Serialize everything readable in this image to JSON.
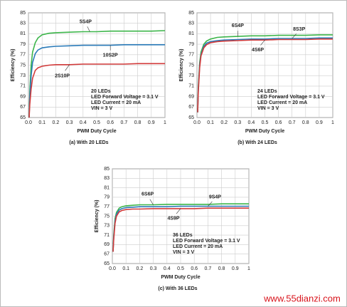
{
  "chart_data": [
    {
      "type": "line",
      "title": "(a) With 20 LEDs",
      "xlabel": "PWM Duty Cycle",
      "ylabel": "Efficiency (%)",
      "annotations": [
        "20 LEDs",
        "LED Forward Voltage = 3.1 V",
        "LED Current = 20 mA",
        "VIN = 3 V"
      ],
      "x": [
        0.005,
        0.01,
        0.02,
        0.03,
        0.05,
        0.07,
        0.1,
        0.15,
        0.2,
        0.3,
        0.4,
        0.5,
        0.6,
        0.7,
        0.8,
        0.9,
        1.0
      ],
      "series": [
        {
          "name": "5S4P",
          "color": "#3cb54a",
          "values": [
            65,
            70,
            75,
            77.5,
            79.3,
            80.2,
            80.8,
            81.1,
            81.2,
            81.3,
            81.4,
            81.4,
            81.5,
            81.5,
            81.5,
            81.5,
            81.6
          ]
        },
        {
          "name": "10S2P",
          "color": "#2b7bb9",
          "values": [
            65,
            69,
            73,
            75.5,
            77.2,
            77.9,
            78.3,
            78.5,
            78.6,
            78.7,
            78.8,
            78.8,
            78.8,
            78.9,
            78.9,
            78.9,
            78.9
          ]
        },
        {
          "name": "2S10P",
          "color": "#d23a3a",
          "values": [
            65,
            67.5,
            70.5,
            72.5,
            74,
            74.5,
            74.8,
            75,
            75.1,
            75.1,
            75.2,
            75.2,
            75.2,
            75.2,
            75.3,
            75.3,
            75.3
          ]
        }
      ],
      "xlim": [
        0,
        1
      ],
      "xticks": [
        {
          "value": 0,
          "label": "0.0"
        },
        0.1,
        0.2,
        0.3,
        0.4,
        0.5,
        0.6,
        0.7,
        0.8,
        0.9,
        1
      ],
      "ylim": [
        65,
        85
      ],
      "yticks": [
        65,
        67,
        69,
        71,
        73,
        75,
        77,
        79,
        81,
        83,
        85
      ],
      "grid": true
    },
    {
      "type": "line",
      "title": "(b) With 24 LEDs",
      "xlabel": "PWM Duty Cycle",
      "ylabel": "Efficiency (%)",
      "annotations": [
        "24 LEDs",
        "LED Forward Voltage = 3.1 V",
        "LED Current = 20 mA",
        "VIN = 3 V"
      ],
      "x": [
        0.005,
        0.01,
        0.02,
        0.03,
        0.05,
        0.07,
        0.1,
        0.15,
        0.2,
        0.3,
        0.4,
        0.5,
        0.6,
        0.7,
        0.8,
        0.9,
        1.0
      ],
      "series": [
        {
          "name": "6S4P",
          "color": "#3cb54a",
          "values": [
            66,
            71,
            75.5,
            77.5,
            79,
            79.6,
            80,
            80.3,
            80.4,
            80.5,
            80.6,
            80.6,
            80.7,
            80.7,
            80.7,
            80.8,
            80.8
          ]
        },
        {
          "name": "8S3P",
          "color": "#2b7bb9",
          "values": [
            66,
            70.5,
            75,
            77,
            78.6,
            79.2,
            79.5,
            79.7,
            79.8,
            79.9,
            80,
            80,
            80.1,
            80.1,
            80.1,
            80.2,
            80.2
          ]
        },
        {
          "name": "4S6P",
          "color": "#d23a3a",
          "values": [
            66,
            70,
            74.5,
            76.8,
            78.3,
            78.9,
            79.3,
            79.5,
            79.6,
            79.7,
            79.8,
            79.8,
            79.9,
            79.9,
            79.9,
            80,
            80
          ]
        }
      ],
      "xlim": [
        0,
        1
      ],
      "xticks": [
        {
          "value": 0,
          "label": "0.0"
        },
        0.1,
        0.2,
        0.3,
        0.4,
        0.5,
        0.6,
        0.7,
        0.8,
        0.9,
        1
      ],
      "ylim": [
        65,
        85
      ],
      "yticks": [
        65,
        67,
        69,
        71,
        73,
        75,
        77,
        79,
        81,
        83,
        85
      ],
      "grid": true
    },
    {
      "type": "line",
      "title": "(c) With 36 LEDs",
      "xlabel": "PWM Duty Cycle",
      "ylabel": "Efficiency (%)",
      "annotations": [
        "36 LEDs",
        "LED Forward Voltage = 3.1 V",
        "LED Current = 20 mA",
        "VIN = 3 V"
      ],
      "x": [
        0.005,
        0.01,
        0.02,
        0.03,
        0.05,
        0.07,
        0.1,
        0.15,
        0.2,
        0.3,
        0.4,
        0.5,
        0.6,
        0.7,
        0.8,
        0.9,
        1.0
      ],
      "series": [
        {
          "name": "6S6P",
          "color": "#3cb54a",
          "values": [
            67.5,
            71,
            74.5,
            75.8,
            76.7,
            77,
            77.2,
            77.3,
            77.4,
            77.4,
            77.5,
            77.5,
            77.5,
            77.5,
            77.6,
            77.6,
            77.6
          ]
        },
        {
          "name": "9S4P",
          "color": "#2b7bb9",
          "values": [
            67.5,
            70.5,
            74,
            75.4,
            76.3,
            76.6,
            76.8,
            76.9,
            77,
            77,
            77,
            77.1,
            77.1,
            77.1,
            77.1,
            77.1,
            77.1
          ]
        },
        {
          "name": "4S9P",
          "color": "#d23a3a",
          "values": [
            67.5,
            70,
            73.5,
            75,
            75.9,
            76.2,
            76.4,
            76.5,
            76.5,
            76.6,
            76.6,
            76.6,
            76.6,
            76.7,
            76.7,
            76.7,
            76.7
          ]
        }
      ],
      "xlim": [
        0,
        1
      ],
      "xticks": [
        {
          "value": 0,
          "label": "0.0"
        },
        0.1,
        0.2,
        0.3,
        0.4,
        0.5,
        0.6,
        0.7,
        0.8,
        0.9,
        1
      ],
      "ylim": [
        65,
        85
      ],
      "yticks": [
        65,
        67,
        69,
        71,
        73,
        75,
        77,
        79,
        81,
        83,
        85
      ],
      "grid": true
    }
  ],
  "watermark": "www.55dianzi.com"
}
